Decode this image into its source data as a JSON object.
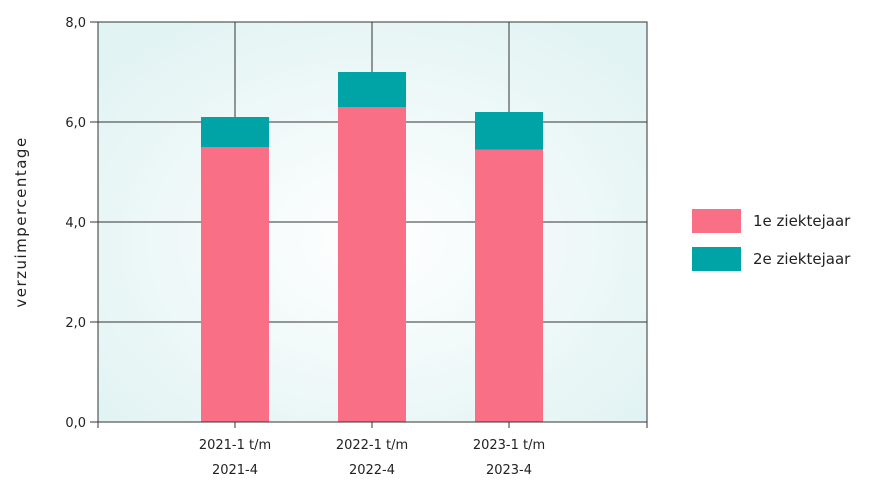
{
  "chart_data": {
    "type": "bar",
    "stacked": true,
    "categories": [
      [
        "2021-1 t/m",
        "2021-4"
      ],
      [
        "2022-1 t/m",
        "2022-4"
      ],
      [
        "2023-1 t/m",
        "2023-4"
      ]
    ],
    "series": [
      {
        "name": "1e ziektejaar",
        "color": "#F96F86",
        "values": [
          5.5,
          6.3,
          5.45
        ]
      },
      {
        "name": "2e ziektejaar",
        "color": "#00A3A6",
        "values": [
          0.6,
          0.7,
          0.75
        ]
      }
    ],
    "ylabel": "verzuimpercentage",
    "xlabel": "",
    "ylim": [
      0,
      8
    ],
    "yticks": [
      "0,0",
      "2,0",
      "4,0",
      "6,0",
      "8,0"
    ],
    "grid": true,
    "legend_position": "right"
  }
}
